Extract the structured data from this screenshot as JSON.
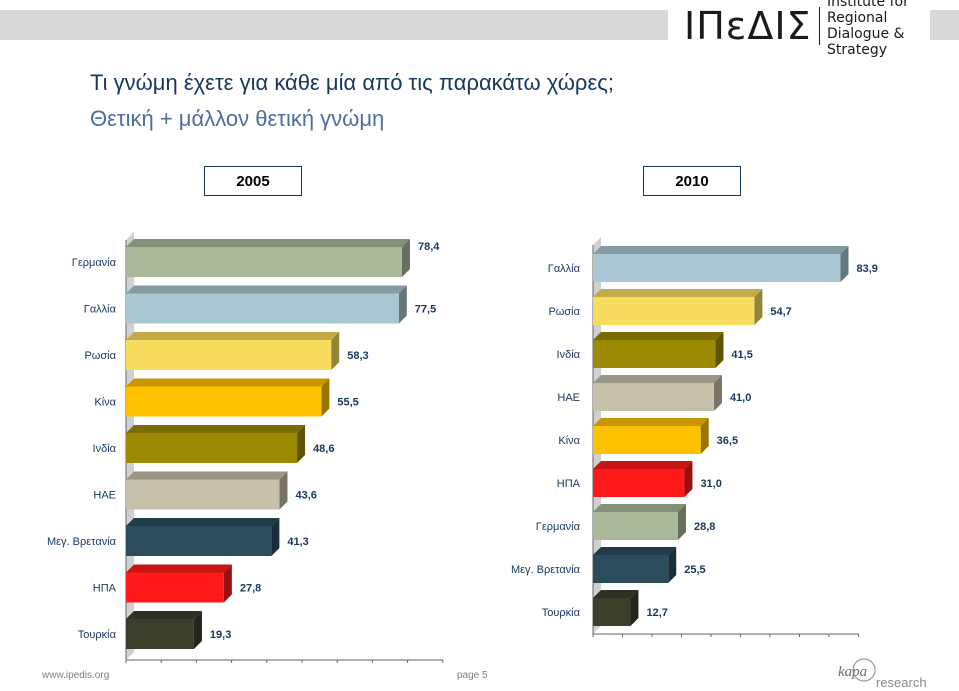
{
  "header": {
    "logo_mark": "ΙΠεΔΙΣ",
    "logo_line1": "Institute for Regional",
    "logo_line2": "Dialogue & Strategy"
  },
  "title": "Τι γνώμη έχετε για κάθε μία από τις παρακάτω χώρες;",
  "subtitle": "Θετική + μάλλον θετική γνώμη",
  "footer": {
    "url": "www.ipedis.org",
    "page": "page 5",
    "brand_word": "kapa",
    "brand_sub": "research"
  },
  "chart_data": [
    {
      "type": "bar",
      "orientation": "horizontal",
      "title": "2005",
      "categories": [
        "Γερμανία",
        "Γαλλία",
        "Ρωσία",
        "Κίνα",
        "Ινδία",
        "ΗΑΕ",
        "Μεγ. Βρετανία",
        "ΗΠΑ",
        "Τουρκία"
      ],
      "values": [
        78.4,
        77.5,
        58.3,
        55.5,
        48.6,
        43.6,
        41.3,
        27.8,
        19.3
      ],
      "value_labels": [
        "78,4",
        "77,5",
        "58,3",
        "55,5",
        "48,6",
        "43,6",
        "41,3",
        "27,8",
        "19,3"
      ],
      "colors": [
        "#aab89a",
        "#a9c7d2",
        "#f7dc5d",
        "#ffc000",
        "#9c8a04",
        "#c6c0ab",
        "#2b4d5b",
        "#ff1a1a",
        "#3a3e2b"
      ],
      "xlim": [
        0,
        90
      ]
    },
    {
      "type": "bar",
      "orientation": "horizontal",
      "title": "2010",
      "categories": [
        "Γαλλία",
        "Ρωσία",
        "Ινδία",
        "ΗΑΕ",
        "Κίνα",
        "ΗΠΑ",
        "Γερμανία",
        "Μεγ. Βρετανία",
        "Τουρκία"
      ],
      "values": [
        83.9,
        54.7,
        41.5,
        41.0,
        36.5,
        31.0,
        28.8,
        25.5,
        12.7
      ],
      "value_labels": [
        "83,9",
        "54,7",
        "41,5",
        "41,0",
        "36,5",
        "31,0",
        "28,8",
        "25,5",
        "12,7"
      ],
      "colors": [
        "#a9c7d2",
        "#f7dc5d",
        "#9c8a04",
        "#c6c0ab",
        "#ffc000",
        "#ff1a1a",
        "#aab89a",
        "#2b4d5b",
        "#3a3e2b"
      ],
      "xlim": [
        0,
        90
      ]
    }
  ]
}
